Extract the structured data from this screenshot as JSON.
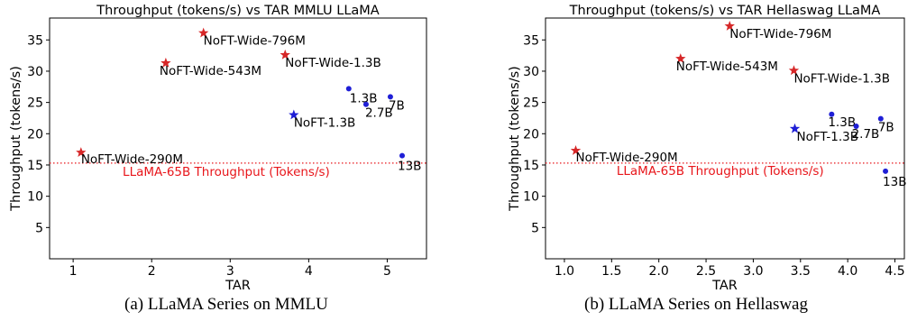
{
  "chart_data": [
    {
      "type": "scatter",
      "title": "Throughput (tokens/s) vs TAR MMLU LLaMA",
      "xlabel": "TAR",
      "ylabel": "Throughput (tokens/s)",
      "xlim": [
        0.7,
        5.5
      ],
      "ylim": [
        0,
        38.5
      ],
      "xticks": [
        1,
        2,
        3,
        4,
        5
      ],
      "yticks": [
        5,
        10,
        15,
        20,
        25,
        30,
        35
      ],
      "xtick_labels": [
        "1",
        "2",
        "3",
        "4",
        "5"
      ],
      "ytick_labels": [
        "5",
        "10",
        "15",
        "20",
        "25",
        "30",
        "35"
      ],
      "grid": false,
      "series": [
        {
          "marker": "star",
          "color": "#d62728",
          "points": [
            {
              "x": 1.1,
              "y": 17.0,
              "label": "NoFT-Wide-290M"
            },
            {
              "x": 2.18,
              "y": 31.3,
              "label": "NoFT-Wide-543M"
            },
            {
              "x": 2.66,
              "y": 36.1,
              "label": "NoFT-Wide-796M"
            },
            {
              "x": 3.7,
              "y": 32.6,
              "label": "NoFT-Wide-1.3B"
            }
          ]
        },
        {
          "marker": "star",
          "color": "#1f1fd6",
          "points": [
            {
              "x": 3.81,
              "y": 23.0,
              "label": "NoFT-1.3B"
            }
          ]
        },
        {
          "marker": "circle",
          "color": "#1f1fd6",
          "points": [
            {
              "x": 4.51,
              "y": 27.2,
              "label": "1.3B"
            },
            {
              "x": 4.73,
              "y": 24.7,
              "label": "2.7B"
            },
            {
              "x": 5.04,
              "y": 25.9,
              "label": "7B"
            },
            {
              "x": 5.19,
              "y": 16.5,
              "label": "13B"
            }
          ]
        }
      ],
      "reference_line": {
        "y": 15.3,
        "label": "LLaMA-65B Throughput (Tokens/s)",
        "color": "#e8161b",
        "style": "dotted"
      }
    },
    {
      "type": "scatter",
      "title": "Throughput (tokens/s) vs TAR Hellaswag LLaMA",
      "xlabel": "TAR",
      "ylabel": "Throughput (tokens/s)",
      "xlim": [
        0.8,
        4.6
      ],
      "ylim": [
        0,
        38.5
      ],
      "xticks": [
        1.0,
        1.5,
        2.0,
        2.5,
        3.0,
        3.5,
        4.0,
        4.5
      ],
      "yticks": [
        5,
        10,
        15,
        20,
        25,
        30,
        35
      ],
      "xtick_labels": [
        "1.0",
        "1.5",
        "2.0",
        "2.5",
        "3.0",
        "3.5",
        "4.0",
        "4.5"
      ],
      "ytick_labels": [
        "5",
        "10",
        "15",
        "20",
        "25",
        "30",
        "35"
      ],
      "grid": false,
      "series": [
        {
          "marker": "star",
          "color": "#d62728",
          "points": [
            {
              "x": 1.12,
              "y": 17.3,
              "label": "NoFT-Wide-290M"
            },
            {
              "x": 2.23,
              "y": 32.0,
              "label": "NoFT-Wide-543M"
            },
            {
              "x": 2.75,
              "y": 37.2,
              "label": "NoFT-Wide-796M"
            },
            {
              "x": 3.43,
              "y": 30.1,
              "label": "NoFT-Wide-1.3B"
            }
          ]
        },
        {
          "marker": "star",
          "color": "#1f1fd6",
          "points": [
            {
              "x": 3.44,
              "y": 20.8,
              "label": "NoFT-1.3B"
            }
          ]
        },
        {
          "marker": "circle",
          "color": "#1f1fd6",
          "points": [
            {
              "x": 3.83,
              "y": 23.1,
              "label": "1.3B"
            },
            {
              "x": 4.09,
              "y": 21.2,
              "label": "2.7B"
            },
            {
              "x": 4.35,
              "y": 22.4,
              "label": "7B"
            },
            {
              "x": 4.4,
              "y": 14.0,
              "label": "13B"
            }
          ]
        }
      ],
      "reference_line": {
        "y": 15.3,
        "label": "LLaMA-65B Throughput (Tokens/s)",
        "color": "#e8161b",
        "style": "dotted"
      }
    }
  ],
  "captions": [
    "(a) LLaMA Series on MMLU",
    "(b) LLaMA Series on Hellaswag"
  ]
}
